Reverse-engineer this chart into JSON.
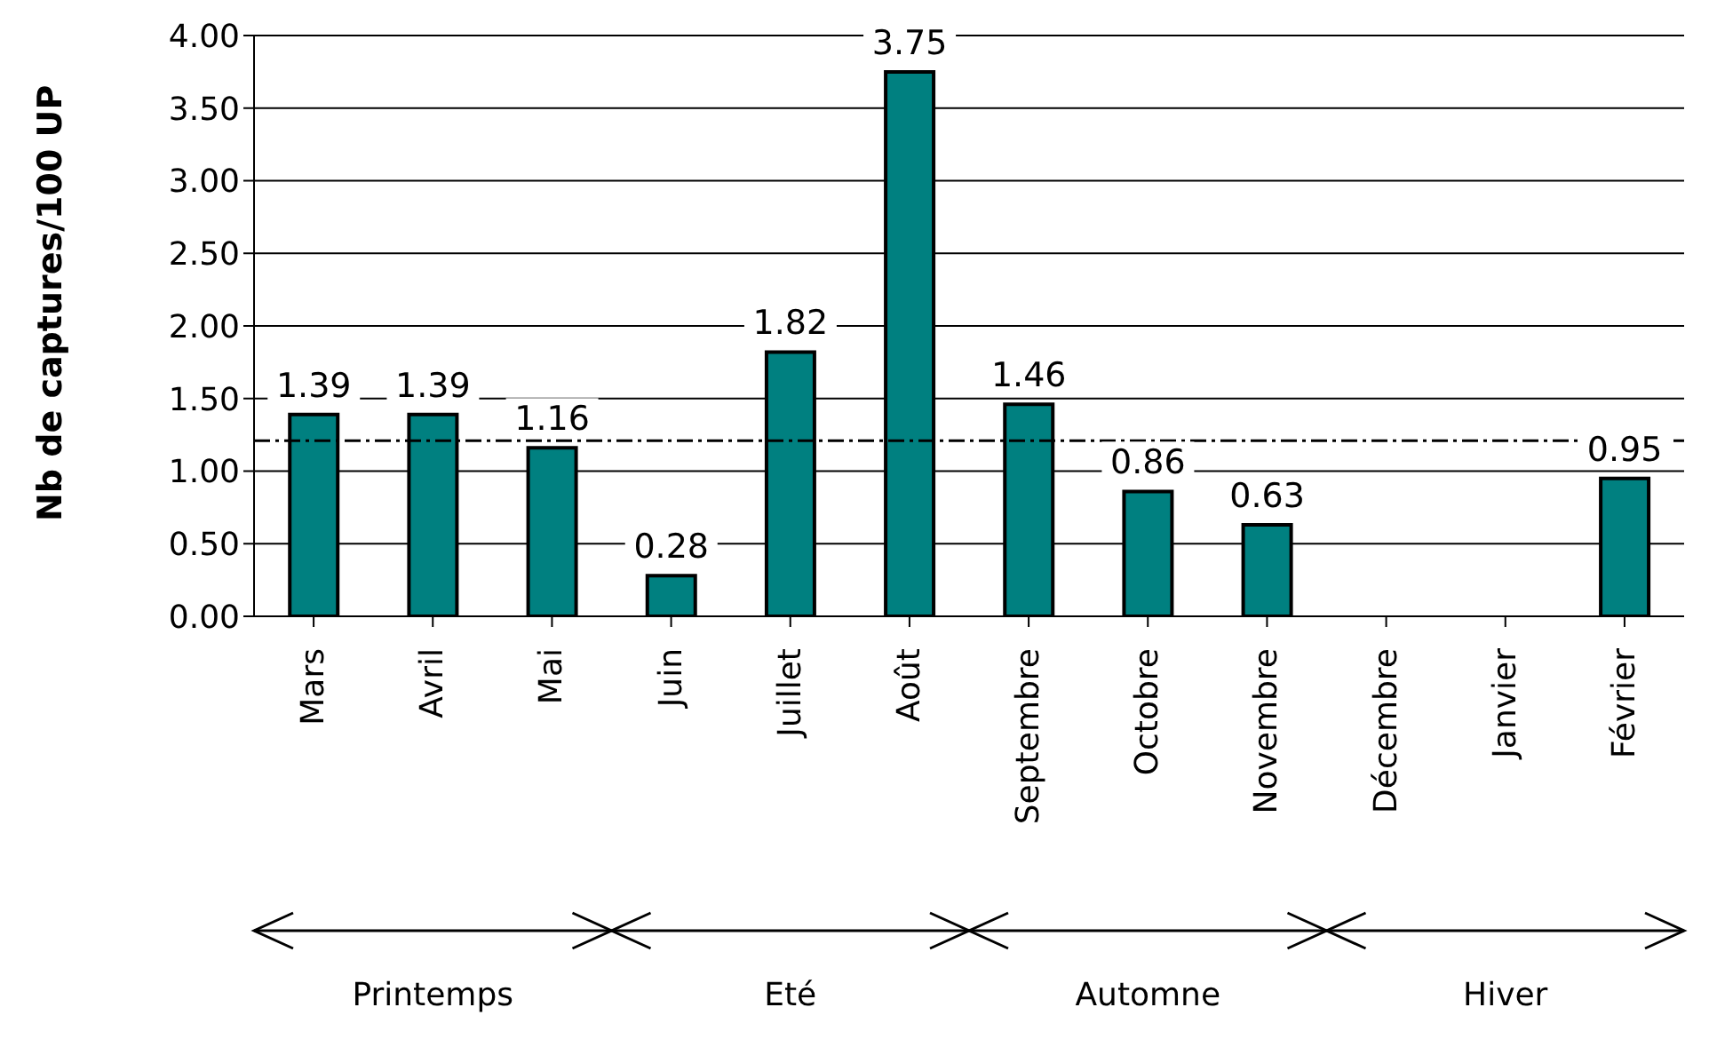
{
  "chart_data": {
    "type": "bar",
    "ylabel": "Nb de captures/100 UP",
    "categories": [
      "Mars",
      "Avril",
      "Mai",
      "Juin",
      "Juillet",
      "Août",
      "Septembre",
      "Octobre",
      "Novembre",
      "Décembre",
      "Janvier",
      "Février"
    ],
    "values": [
      1.39,
      1.39,
      1.16,
      0.28,
      1.82,
      3.75,
      1.46,
      0.86,
      0.63,
      null,
      null,
      0.95
    ],
    "color": "#008080",
    "data_labels": true,
    "ylim": [
      0,
      4
    ],
    "yticks": [
      {
        "value": 0,
        "label": "0.00"
      },
      {
        "value": 0.5,
        "label": "0.50"
      },
      {
        "value": 1,
        "label": "1.00"
      },
      {
        "value": 1.5,
        "label": "1.50"
      },
      {
        "value": 2,
        "label": "2.00"
      },
      {
        "value": 2.5,
        "label": "2.50"
      },
      {
        "value": 3,
        "label": "3.00"
      },
      {
        "value": 3.5,
        "label": "3.50"
      },
      {
        "value": 4,
        "label": "4.00"
      }
    ],
    "grid": "y",
    "ref_lines": [
      {
        "axis": "y",
        "value": 1.21,
        "color": "#000000",
        "line_style": "dashdot"
      }
    ],
    "annotations": [
      "Printemps",
      "Eté",
      "Automne",
      "Hiver"
    ]
  }
}
